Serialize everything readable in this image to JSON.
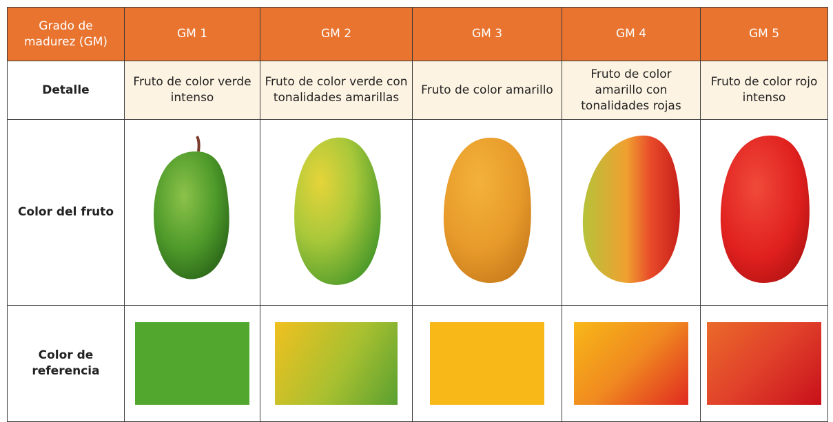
{
  "table": {
    "header": [
      "Grado de madurez (GM)",
      "GM 1",
      "GM 2",
      "GM 3",
      "GM 4",
      "GM 5"
    ],
    "rows": [
      [
        "Detalle",
        "Fruto de color verde intenso",
        "Fruto de color verde con tonalidades amarillas",
        "Fruto de color amarillo",
        "Fruto de color amarillo con tonalidades rojas",
        "Fruto de color rojo intenso"
      ],
      [
        "Color del fruto"
      ],
      [
        "Color de referencia"
      ]
    ]
  }
}
